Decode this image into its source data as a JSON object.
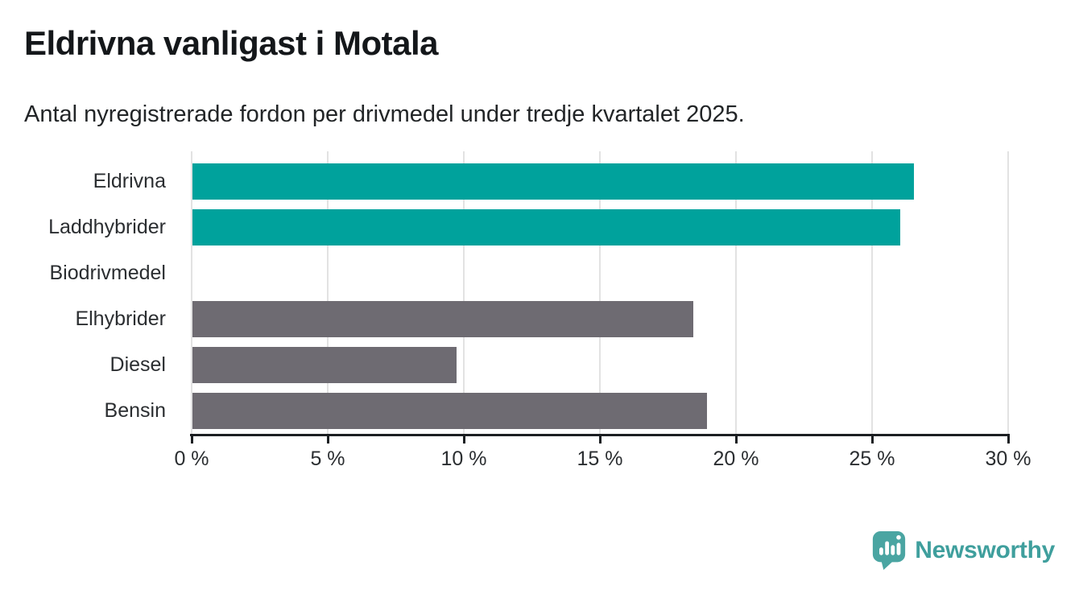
{
  "header": {
    "title": "Eldrivna vanligast i Motala",
    "subtitle": "Antal nyregistrerade fordon per drivmedel under tredje kvartalet 2025."
  },
  "chart_data": {
    "type": "bar",
    "orientation": "horizontal",
    "title": "Eldrivna vanligast i Motala",
    "subtitle": "Antal nyregistrerade fordon per drivmedel under tredje kvartalet 2025.",
    "categories": [
      "Eldrivna",
      "Laddhybrider",
      "Biodrivmedel",
      "Elhybrider",
      "Diesel",
      "Bensin"
    ],
    "values": [
      26.5,
      26.0,
      0,
      18.4,
      9.7,
      18.9
    ],
    "unit": "%",
    "bar_colors": [
      "#00a29c",
      "#00a29c",
      "#6e6b72",
      "#6e6b72",
      "#6e6b72",
      "#6e6b72"
    ],
    "highlight_color": "#00a29c",
    "default_color": "#6e6b72",
    "xlabel": "",
    "ylabel": "",
    "xlim": [
      0,
      30
    ],
    "x_ticks": [
      0,
      5,
      10,
      15,
      20,
      25,
      30
    ],
    "x_tick_labels": [
      "0 %",
      "5 %",
      "10 %",
      "15 %",
      "20 %",
      "25 %",
      "30 %"
    ],
    "grid": true,
    "gridline_color": "#e2e2e2",
    "legend": "none"
  },
  "footer": {
    "brand": "Newsworthy",
    "brand_color": "#3f9f9d",
    "icon": "newsworthy-bubble-barchart-icon",
    "icon_color": "#4aa5a2"
  }
}
